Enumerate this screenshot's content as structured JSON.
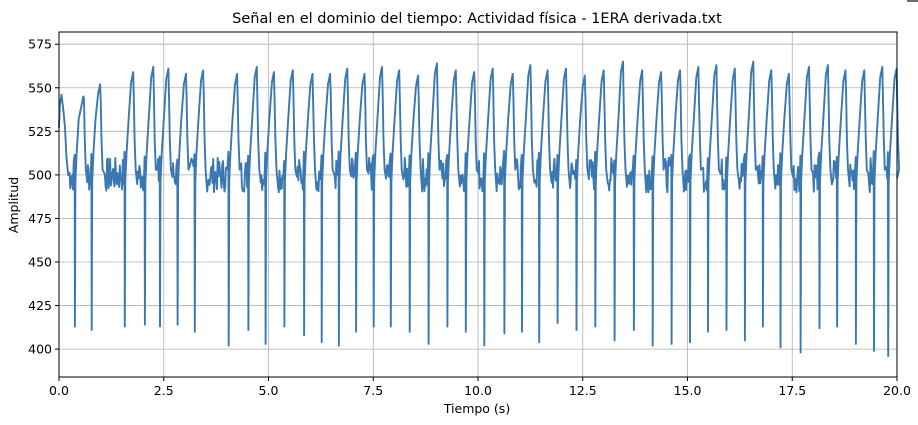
{
  "chart_data": {
    "type": "line",
    "title": "Señal en el dominio del tiempo: Actividad física - 1ERA derivada.txt",
    "xlabel": "Tiempo (s)",
    "ylabel": "Amplitud",
    "xlim": [
      0,
      20
    ],
    "ylim": [
      384,
      582
    ],
    "x_ticks": [
      "0.0",
      "2.5",
      "5.0",
      "7.5",
      "10.0",
      "12.5",
      "15.0",
      "17.5",
      "20.0"
    ],
    "y_ticks": [
      "400",
      "425",
      "450",
      "475",
      "500",
      "525",
      "550",
      "575"
    ],
    "grid": true,
    "line_color": "#3a78b1",
    "beat_times": [
      0.38,
      0.78,
      1.57,
      2.05,
      2.41,
      2.83,
      3.24,
      4.05,
      4.52,
      4.93,
      5.38,
      5.85,
      6.27,
      6.68,
      7.09,
      7.51,
      7.92,
      8.37,
      8.82,
      9.27,
      9.71,
      10.15,
      10.63,
      11.05,
      11.46,
      11.9,
      12.35,
      12.8,
      13.26,
      13.72,
      14.17,
      14.62,
      15.06,
      15.49,
      15.93,
      16.37,
      16.8,
      17.22,
      17.7,
      18.15,
      18.57,
      19.02,
      19.45,
      19.79
    ],
    "beat_min": [
      413,
      411,
      413,
      414,
      413,
      414,
      410,
      402,
      411,
      403,
      413,
      408,
      404,
      402,
      410,
      413,
      413,
      410,
      403,
      413,
      410,
      402,
      409,
      410,
      404,
      415,
      411,
      413,
      405,
      411,
      402,
      403,
      404,
      410,
      411,
      405,
      413,
      401,
      398,
      412,
      413,
      403,
      399,
      396
    ],
    "beat_peak": [
      545,
      552,
      559,
      562,
      561,
      558,
      560,
      558,
      562,
      559,
      560,
      558,
      558,
      561,
      558,
      562,
      560,
      557,
      564,
      560,
      559,
      561,
      558,
      563,
      560,
      561,
      557,
      560,
      565,
      560,
      559,
      560,
      562,
      563,
      561,
      565,
      560,
      558,
      562,
      563,
      560,
      560,
      562,
      561
    ]
  }
}
